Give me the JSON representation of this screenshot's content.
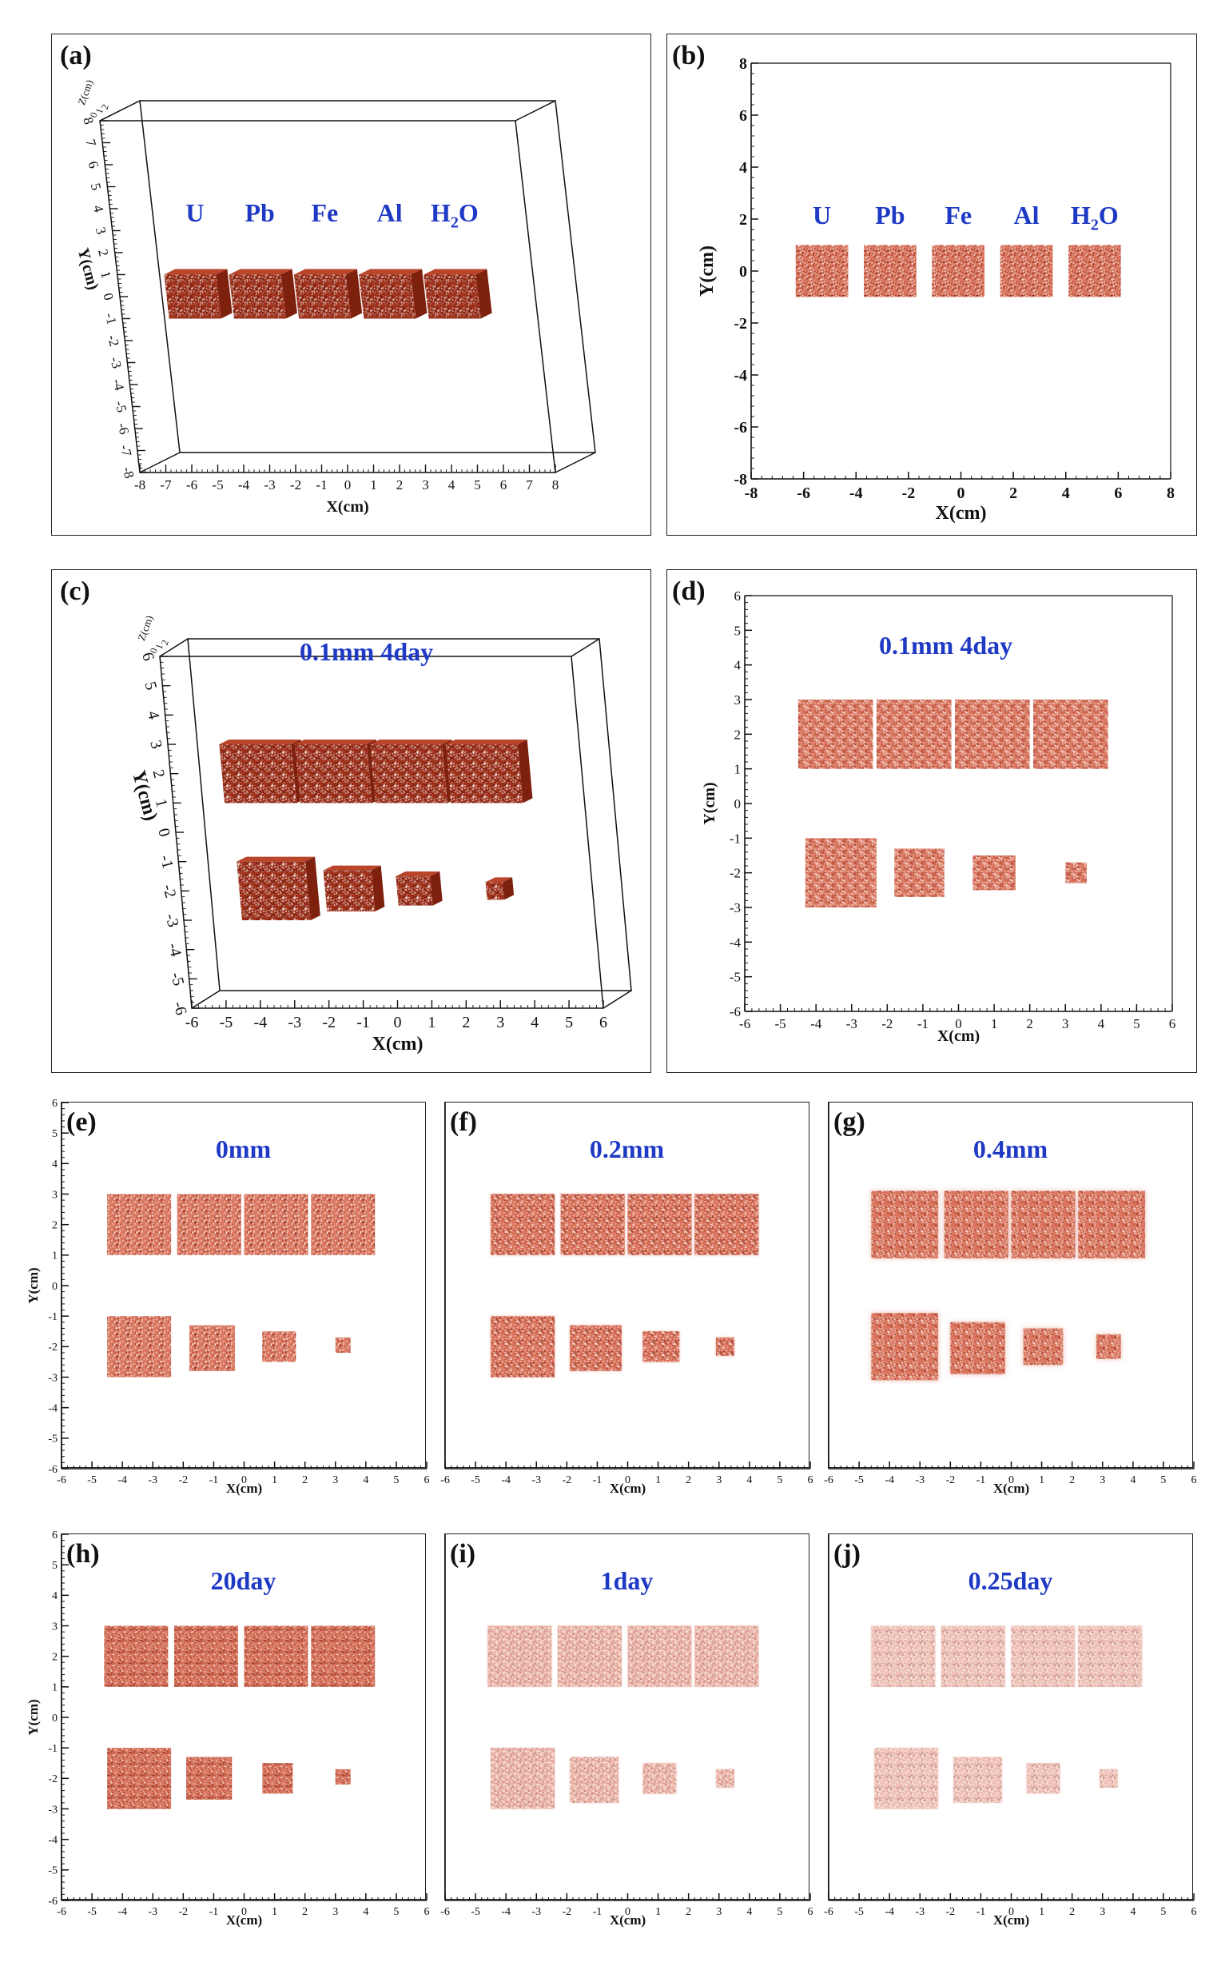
{
  "colors": {
    "block": "#d9725a",
    "block_dark": "#8a2212",
    "annotation": "#1e39c4",
    "axis": "#111111"
  },
  "materials": [
    {
      "name": "U",
      "sub": ""
    },
    {
      "name": "Pb",
      "sub": ""
    },
    {
      "name": "Fe",
      "sub": ""
    },
    {
      "name": "Al",
      "sub": ""
    },
    {
      "name": "H",
      "sub": "2",
      "tail": "O"
    }
  ],
  "chart_data": [
    {
      "panel": "(a)",
      "type": "scatter",
      "view": "3d",
      "xlabel": "X(cm)",
      "ylabel": "Y(cm)",
      "zlabel": "Z(cm)",
      "xlim": [
        -8,
        8
      ],
      "ylim": [
        -8,
        8
      ],
      "xticks": [
        -8,
        -7,
        -6,
        -5,
        -4,
        -3,
        -2,
        -1,
        0,
        1,
        2,
        3,
        4,
        5,
        6,
        7,
        8
      ],
      "yticks": [
        -8,
        -7,
        -6,
        -5,
        -4,
        -3,
        -2,
        -1,
        0,
        1,
        2,
        3,
        4,
        5,
        6,
        7,
        8
      ],
      "zticks": [
        0,
        1,
        2
      ],
      "annotation": "",
      "blocks": [
        {
          "x0": -6.2,
          "x1": -4.2,
          "y0": -1,
          "y1": 1
        },
        {
          "x0": -3.7,
          "x1": -1.7,
          "y0": -1,
          "y1": 1
        },
        {
          "x0": -1.2,
          "x1": 0.8,
          "y0": -1,
          "y1": 1
        },
        {
          "x0": 1.3,
          "x1": 3.3,
          "y0": -1,
          "y1": 1
        },
        {
          "x0": 3.8,
          "x1": 5.8,
          "y0": -1,
          "y1": 1
        }
      ]
    },
    {
      "panel": "(b)",
      "type": "scatter",
      "view": "2d",
      "xlabel": "X(cm)",
      "ylabel": "Y(cm)",
      "xlim": [
        -8,
        8
      ],
      "ylim": [
        -8,
        8
      ],
      "xticks": [
        -8,
        -6,
        -4,
        -2,
        0,
        2,
        4,
        6,
        8
      ],
      "yticks": [
        -8,
        -6,
        -4,
        -2,
        0,
        2,
        4,
        6,
        8
      ],
      "annotation": "",
      "blocks": [
        {
          "x0": -6.3,
          "x1": -4.3,
          "y0": -1,
          "y1": 1
        },
        {
          "x0": -3.7,
          "x1": -1.7,
          "y0": -1,
          "y1": 1
        },
        {
          "x0": -1.1,
          "x1": 0.9,
          "y0": -1,
          "y1": 1
        },
        {
          "x0": 1.5,
          "x1": 3.5,
          "y0": -1,
          "y1": 1
        },
        {
          "x0": 4.1,
          "x1": 6.1,
          "y0": -1,
          "y1": 1
        }
      ]
    },
    {
      "panel": "(c)",
      "type": "scatter",
      "view": "3d",
      "xlabel": "X(cm)",
      "ylabel": "Y(cm)",
      "zlabel": "Z(cm)",
      "xlim": [
        -6,
        6
      ],
      "ylim": [
        -6,
        6
      ],
      "xticks": [
        -6,
        -5,
        -4,
        -3,
        -2,
        -1,
        0,
        1,
        2,
        3,
        4,
        5,
        6
      ],
      "yticks": [
        -6,
        -5,
        -4,
        -3,
        -2,
        -1,
        0,
        1,
        2,
        3,
        4,
        5,
        6
      ],
      "zticks": [
        0,
        1,
        2
      ],
      "annotation": "0.1mm  4day",
      "blocks": [
        {
          "x0": -4.5,
          "x1": -2.4,
          "y0": 1,
          "y1": 3
        },
        {
          "x0": -2.3,
          "x1": -0.2,
          "y0": 1,
          "y1": 3
        },
        {
          "x0": -0.1,
          "x1": 2.0,
          "y0": 1,
          "y1": 3
        },
        {
          "x0": 2.1,
          "x1": 4.2,
          "y0": 1,
          "y1": 3
        },
        {
          "x0": -4.3,
          "x1": -2.3,
          "y0": -3,
          "y1": -1
        },
        {
          "x0": -1.8,
          "x1": -0.4,
          "y0": -2.7,
          "y1": -1.3
        },
        {
          "x0": 0.3,
          "x1": 1.3,
          "y0": -2.5,
          "y1": -1.5
        },
        {
          "x0": 2.9,
          "x1": 3.4,
          "y0": -2.3,
          "y1": -1.7
        }
      ]
    },
    {
      "panel": "(d)",
      "type": "scatter",
      "view": "2d",
      "xlabel": "X(cm)",
      "ylabel": "Y(cm)",
      "xlim": [
        -6,
        6
      ],
      "ylim": [
        -6,
        6
      ],
      "xticks": [
        -6,
        -5,
        -4,
        -3,
        -2,
        -1,
        0,
        1,
        2,
        3,
        4,
        5,
        6
      ],
      "yticks": [
        -6,
        -5,
        -4,
        -3,
        -2,
        -1,
        0,
        1,
        2,
        3,
        4,
        5,
        6
      ],
      "annotation": "0.1mm  4day",
      "blocks": [
        {
          "x0": -4.5,
          "x1": -2.4,
          "y0": 1,
          "y1": 3
        },
        {
          "x0": -2.3,
          "x1": -0.2,
          "y0": 1,
          "y1": 3
        },
        {
          "x0": -0.1,
          "x1": 2.0,
          "y0": 1,
          "y1": 3
        },
        {
          "x0": 2.1,
          "x1": 4.2,
          "y0": 1,
          "y1": 3
        },
        {
          "x0": -4.3,
          "x1": -2.3,
          "y0": -3,
          "y1": -1
        },
        {
          "x0": -1.8,
          "x1": -0.4,
          "y0": -2.7,
          "y1": -1.3
        },
        {
          "x0": 0.4,
          "x1": 1.6,
          "y0": -2.5,
          "y1": -1.5
        },
        {
          "x0": 3.0,
          "x1": 3.6,
          "y0": -2.3,
          "y1": -1.7
        }
      ]
    },
    {
      "panel": "(e)",
      "type": "scatter",
      "view": "2d",
      "xlabel": "X(cm)",
      "ylabel": "Y(cm)",
      "xlim": [
        -6,
        6
      ],
      "ylim": [
        -6,
        6
      ],
      "xticks": [
        -6,
        -5,
        -4,
        -3,
        -2,
        -1,
        0,
        1,
        2,
        3,
        4,
        5,
        6
      ],
      "yticks": [
        -6,
        -5,
        -4,
        -3,
        -2,
        -1,
        0,
        1,
        2,
        3,
        4,
        5,
        6
      ],
      "annotation": "0mm",
      "blur": 0,
      "density": 1.0,
      "blocks": [
        {
          "x0": -4.5,
          "x1": -2.4,
          "y0": 1,
          "y1": 3
        },
        {
          "x0": -2.2,
          "x1": -0.1,
          "y0": 1,
          "y1": 3
        },
        {
          "x0": 0.0,
          "x1": 2.1,
          "y0": 1,
          "y1": 3
        },
        {
          "x0": 2.2,
          "x1": 4.3,
          "y0": 1,
          "y1": 3
        },
        {
          "x0": -4.5,
          "x1": -2.4,
          "y0": -3,
          "y1": -1
        },
        {
          "x0": -1.8,
          "x1": -0.3,
          "y0": -2.8,
          "y1": -1.3
        },
        {
          "x0": 0.6,
          "x1": 1.7,
          "y0": -2.5,
          "y1": -1.5
        },
        {
          "x0": 3.0,
          "x1": 3.5,
          "y0": -2.2,
          "y1": -1.7
        }
      ]
    },
    {
      "panel": "(f)",
      "type": "scatter",
      "view": "2d",
      "xlabel": "X(cm)",
      "ylabel": "",
      "xlim": [
        -6,
        6
      ],
      "ylim": [
        -6,
        6
      ],
      "xticks": [
        -6,
        -5,
        -4,
        -3,
        -2,
        -1,
        0,
        1,
        2,
        3,
        4,
        5,
        6
      ],
      "yticks": [],
      "annotation": "0.2mm",
      "blur": 1.5,
      "density": 1.0,
      "blocks": [
        {
          "x0": -4.5,
          "x1": -2.4,
          "y0": 1,
          "y1": 3
        },
        {
          "x0": -2.2,
          "x1": -0.1,
          "y0": 1,
          "y1": 3
        },
        {
          "x0": 0.0,
          "x1": 2.1,
          "y0": 1,
          "y1": 3
        },
        {
          "x0": 2.2,
          "x1": 4.3,
          "y0": 1,
          "y1": 3
        },
        {
          "x0": -4.5,
          "x1": -2.4,
          "y0": -3,
          "y1": -1
        },
        {
          "x0": -1.9,
          "x1": -0.2,
          "y0": -2.8,
          "y1": -1.3
        },
        {
          "x0": 0.5,
          "x1": 1.7,
          "y0": -2.5,
          "y1": -1.5
        },
        {
          "x0": 2.9,
          "x1": 3.5,
          "y0": -2.3,
          "y1": -1.7
        }
      ]
    },
    {
      "panel": "(g)",
      "type": "scatter",
      "view": "2d",
      "xlabel": "X(cm)",
      "ylabel": "",
      "xlim": [
        -6,
        6
      ],
      "ylim": [
        -6,
        6
      ],
      "xticks": [
        -6,
        -5,
        -4,
        -3,
        -2,
        -1,
        0,
        1,
        2,
        3,
        4,
        5,
        6
      ],
      "yticks": [],
      "annotation": "0.4mm",
      "blur": 3.5,
      "density": 1.0,
      "blocks": [
        {
          "x0": -4.6,
          "x1": -2.4,
          "y0": 0.9,
          "y1": 3.1
        },
        {
          "x0": -2.2,
          "x1": -0.1,
          "y0": 0.9,
          "y1": 3.1
        },
        {
          "x0": 0.0,
          "x1": 2.1,
          "y0": 0.9,
          "y1": 3.1
        },
        {
          "x0": 2.2,
          "x1": 4.4,
          "y0": 0.9,
          "y1": 3.1
        },
        {
          "x0": -4.6,
          "x1": -2.4,
          "y0": -3.1,
          "y1": -0.9
        },
        {
          "x0": -2.0,
          "x1": -0.2,
          "y0": -2.9,
          "y1": -1.2
        },
        {
          "x0": 0.4,
          "x1": 1.7,
          "y0": -2.6,
          "y1": -1.4
        },
        {
          "x0": 2.8,
          "x1": 3.6,
          "y0": -2.4,
          "y1": -1.6
        }
      ]
    },
    {
      "panel": "(h)",
      "type": "scatter",
      "view": "2d",
      "xlabel": "X(cm)",
      "ylabel": "Y(cm)",
      "xlim": [
        -6,
        6
      ],
      "ylim": [
        -6,
        6
      ],
      "xticks": [
        -6,
        -5,
        -4,
        -3,
        -2,
        -1,
        0,
        1,
        2,
        3,
        4,
        5,
        6
      ],
      "yticks": [
        -6,
        -5,
        -4,
        -3,
        -2,
        -1,
        0,
        1,
        2,
        3,
        4,
        5,
        6
      ],
      "annotation": "20day",
      "blur": 0,
      "density": 1.0,
      "blocks": [
        {
          "x0": -4.6,
          "x1": -2.5,
          "y0": 1,
          "y1": 3
        },
        {
          "x0": -2.3,
          "x1": -0.2,
          "y0": 1,
          "y1": 3
        },
        {
          "x0": 0.0,
          "x1": 2.1,
          "y0": 1,
          "y1": 3
        },
        {
          "x0": 2.2,
          "x1": 4.3,
          "y0": 1,
          "y1": 3
        },
        {
          "x0": -4.5,
          "x1": -2.4,
          "y0": -3,
          "y1": -1
        },
        {
          "x0": -1.9,
          "x1": -0.4,
          "y0": -2.7,
          "y1": -1.3
        },
        {
          "x0": 0.6,
          "x1": 1.6,
          "y0": -2.5,
          "y1": -1.5
        },
        {
          "x0": 3.0,
          "x1": 3.5,
          "y0": -2.2,
          "y1": -1.7
        }
      ]
    },
    {
      "panel": "(i)",
      "type": "scatter",
      "view": "2d",
      "xlabel": "X(cm)",
      "ylabel": "",
      "xlim": [
        -6,
        6
      ],
      "ylim": [
        -6,
        6
      ],
      "xticks": [
        -6,
        -5,
        -4,
        -3,
        -2,
        -1,
        0,
        1,
        2,
        3,
        4,
        5,
        6
      ],
      "yticks": [],
      "annotation": "1day",
      "blur": 1,
      "density": 0.6,
      "blocks": [
        {
          "x0": -4.6,
          "x1": -2.5,
          "y0": 1,
          "y1": 3
        },
        {
          "x0": -2.3,
          "x1": -0.2,
          "y0": 1,
          "y1": 3
        },
        {
          "x0": 0.0,
          "x1": 2.1,
          "y0": 1,
          "y1": 3
        },
        {
          "x0": 2.2,
          "x1": 4.3,
          "y0": 1,
          "y1": 3
        },
        {
          "x0": -4.5,
          "x1": -2.4,
          "y0": -3,
          "y1": -1
        },
        {
          "x0": -1.9,
          "x1": -0.3,
          "y0": -2.8,
          "y1": -1.3
        },
        {
          "x0": 0.5,
          "x1": 1.6,
          "y0": -2.5,
          "y1": -1.5
        },
        {
          "x0": 2.9,
          "x1": 3.5,
          "y0": -2.3,
          "y1": -1.7
        }
      ]
    },
    {
      "panel": "(j)",
      "type": "scatter",
      "view": "2d",
      "xlabel": "X(cm)",
      "ylabel": "",
      "xlim": [
        -6,
        6
      ],
      "ylim": [
        -6,
        6
      ],
      "xticks": [
        -6,
        -5,
        -4,
        -3,
        -2,
        -1,
        0,
        1,
        2,
        3,
        4,
        5,
        6
      ],
      "yticks": [],
      "annotation": "0.25day",
      "blur": 1,
      "density": 0.35,
      "blocks": [
        {
          "x0": -4.6,
          "x1": -2.5,
          "y0": 1,
          "y1": 3
        },
        {
          "x0": -2.3,
          "x1": -0.2,
          "y0": 1,
          "y1": 3
        },
        {
          "x0": 0.0,
          "x1": 2.1,
          "y0": 1,
          "y1": 3
        },
        {
          "x0": 2.2,
          "x1": 4.3,
          "y0": 1,
          "y1": 3
        },
        {
          "x0": -4.5,
          "x1": -2.4,
          "y0": -3,
          "y1": -1
        },
        {
          "x0": -1.9,
          "x1": -0.3,
          "y0": -2.8,
          "y1": -1.3
        },
        {
          "x0": 0.5,
          "x1": 1.6,
          "y0": -2.5,
          "y1": -1.5
        },
        {
          "x0": 2.9,
          "x1": 3.5,
          "y0": -2.3,
          "y1": -1.7
        }
      ]
    }
  ]
}
